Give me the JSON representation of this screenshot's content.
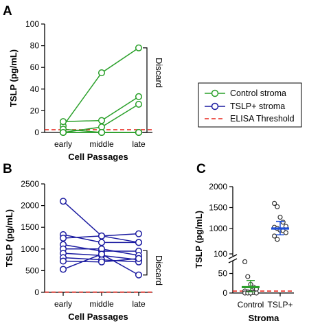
{
  "figure": {
    "colors": {
      "control": "#2aa02a",
      "tslp": "#1a1aa0",
      "threshold": "#e8251b",
      "dots": "#333333",
      "mean_control": "#2aa02a",
      "mean_tslp": "#1f4fd8"
    },
    "legend": {
      "placement": "right",
      "items": [
        {
          "label": "Control  stroma",
          "key": "control"
        },
        {
          "label": "TSLP+  stroma",
          "key": "tslp"
        },
        {
          "label": "ELISA Threshold",
          "key": "threshold"
        }
      ]
    }
  },
  "chart_data": [
    {
      "panel": "A",
      "type": "line",
      "xlabel": "Cell Passages",
      "ylabel": "TSLP (pg/mL)",
      "categories": [
        "early",
        "middle",
        "late"
      ],
      "ylim": [
        0,
        100
      ],
      "yticks": [
        "0",
        "20",
        "40",
        "60",
        "80",
        "100"
      ],
      "threshold": 2.5,
      "bracket": {
        "label": "Discard",
        "from": 0,
        "to": 78
      },
      "series": [
        {
          "values": [
            6,
            55,
            78
          ]
        },
        {
          "values": [
            10,
            11,
            33
          ]
        },
        {
          "values": [
            0,
            5,
            26
          ]
        },
        {
          "values": [
            3,
            0,
            0
          ]
        },
        {
          "values": [
            0,
            0,
            0
          ]
        },
        {
          "values": [
            0,
            0,
            0
          ]
        }
      ]
    },
    {
      "panel": "B",
      "type": "line",
      "xlabel": "Cell Passages",
      "ylabel": "TSLP (pg/mL)",
      "categories": [
        "early",
        "middle",
        "late"
      ],
      "ylim": [
        0,
        2500
      ],
      "yticks": [
        "0",
        "500",
        "1000",
        "1500",
        "2000",
        "2500"
      ],
      "threshold": 5,
      "bracket": {
        "label": "Discard",
        "from": 400,
        "to": 960
      },
      "series": [
        {
          "values": [
            2100,
            1300,
            1150
          ]
        },
        {
          "values": [
            1330,
            1150,
            1150
          ]
        },
        {
          "values": [
            1250,
            1300,
            1350
          ]
        },
        {
          "values": [
            1100,
            950,
            950
          ]
        },
        {
          "values": [
            1000,
            1000,
            850
          ]
        },
        {
          "values": [
            900,
            850,
            750
          ]
        },
        {
          "values": [
            800,
            750,
            700
          ]
        },
        {
          "values": [
            720,
            700,
            780
          ]
        },
        {
          "values": [
            530,
            880,
            400
          ]
        }
      ]
    },
    {
      "panel": "C",
      "type": "scatter",
      "xlabel": "Stroma",
      "ylabel": "TSLP (pg/mL)",
      "categories": [
        "Control",
        "TSLP+"
      ],
      "ylim_lower": [
        0,
        100
      ],
      "ylim_upper": [
        100,
        2000
      ],
      "yticks_lower": [
        "0",
        "50",
        "100"
      ],
      "yticks_upper": [
        "1000",
        "1500",
        "2000"
      ],
      "axis_break": true,
      "threshold": 5,
      "groups": [
        {
          "category": "Control",
          "values": [
            80,
            42,
            22,
            15,
            10,
            5,
            3,
            2,
            1,
            0,
            0,
            0,
            0
          ],
          "mean": 15,
          "error": [
            3,
            32
          ]
        },
        {
          "category": "TSLP+",
          "values": [
            1600,
            1520,
            1270,
            1150,
            1050,
            1030,
            1000,
            960,
            950,
            900,
            820,
            740
          ],
          "mean": 1000,
          "error": [
            850,
            1170
          ]
        }
      ]
    }
  ]
}
